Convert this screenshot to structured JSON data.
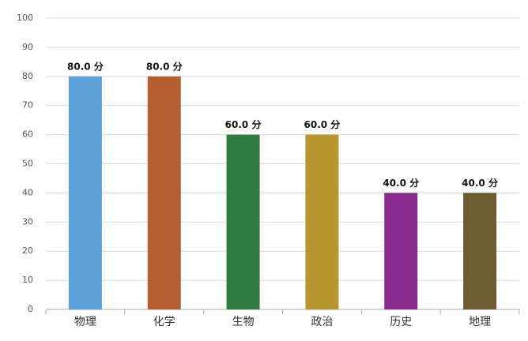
{
  "chart_data": {
    "type": "bar",
    "categories": [
      "物理",
      "化学",
      "生物",
      "政治",
      "历史",
      "地理"
    ],
    "values": [
      80,
      80,
      60,
      60,
      40,
      40
    ],
    "value_labels": [
      "80.0 分",
      "80.0 分",
      "60.0 分",
      "60.0 分",
      "40.0 分",
      "40.0 分"
    ],
    "colors": [
      "#5ba3d9",
      "#b55f30",
      "#2e7a3f",
      "#b8962e",
      "#8a2a8e",
      "#6e5c32"
    ],
    "ylim": [
      0,
      100
    ],
    "yticks": [
      0,
      10,
      20,
      30,
      40,
      50,
      60,
      70,
      80,
      90,
      100
    ],
    "grid": true
  }
}
